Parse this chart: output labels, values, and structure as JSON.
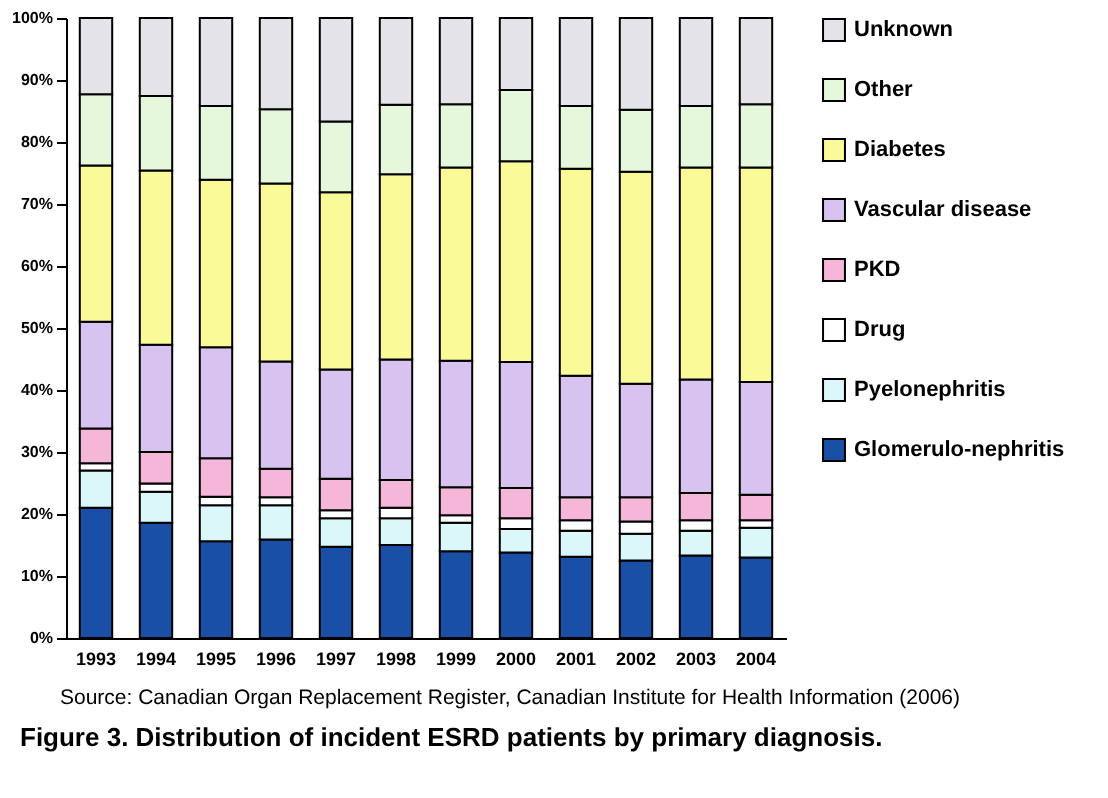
{
  "chart_data": {
    "type": "bar",
    "stacked": true,
    "title": "Figure 3.  Distribution of incident ESRD patients by primary diagnosis.",
    "annotations": [
      "Source: Canadian Organ Replacement Register, Canadian Institute for Health Information (2006)"
    ],
    "categories": [
      "1993",
      "1994",
      "1995",
      "1996",
      "1997",
      "1998",
      "1999",
      "2000",
      "2001",
      "2002",
      "2003",
      "2004"
    ],
    "ylim": [
      0,
      100
    ],
    "yticks": [
      {
        "value": 0,
        "label": "0%"
      },
      {
        "value": 10,
        "label": "10%"
      },
      {
        "value": 20,
        "label": "20%"
      },
      {
        "value": 30,
        "label": "30%"
      },
      {
        "value": 40,
        "label": "40%"
      },
      {
        "value": 50,
        "label": "50%"
      },
      {
        "value": 60,
        "label": "60%"
      },
      {
        "value": 70,
        "label": "70%"
      },
      {
        "value": 80,
        "label": "80%"
      },
      {
        "value": 90,
        "label": "90%"
      },
      {
        "value": 100,
        "label": "100%"
      }
    ],
    "grid": false,
    "legend": "right",
    "series": [
      {
        "name": "Glomerulo-nephritis",
        "color": "#1a4fa6",
        "values": [
          21,
          18.6,
          15.6,
          15.9,
          14.7,
          15,
          14,
          13.8,
          13.1,
          12.5,
          13.3,
          13
        ]
      },
      {
        "name": "Pyelonephritis",
        "color": "#dcf7fa",
        "values": [
          6,
          5,
          5.8,
          5.5,
          4.6,
          4.3,
          4.6,
          3.8,
          4.2,
          4.3,
          4,
          4.8
        ]
      },
      {
        "name": "Drug",
        "color": "#ffffff",
        "values": [
          1.2,
          1.3,
          1.4,
          1.3,
          1.3,
          1.7,
          1.2,
          1.7,
          1.7,
          2,
          1.7,
          1.2
        ]
      },
      {
        "name": "PKD",
        "color": "#f5b6da",
        "values": [
          5.6,
          5.1,
          6.2,
          4.6,
          5.1,
          4.5,
          4.5,
          4.9,
          3.7,
          3.9,
          4.4,
          4.1
        ]
      },
      {
        "name": "Vascular disease",
        "color": "#d8c3f0",
        "values": [
          17.2,
          17.3,
          17.9,
          17.3,
          17.6,
          19.4,
          20.4,
          20.3,
          19.6,
          18.3,
          18.3,
          18.2
        ]
      },
      {
        "name": "Diabetes",
        "color": "#fbfa98",
        "values": [
          25.2,
          28.1,
          27,
          28.7,
          28.6,
          29.9,
          31.2,
          32.4,
          33.4,
          34.2,
          34.2,
          34.6
        ]
      },
      {
        "name": "Other",
        "color": "#e6f8dc",
        "values": [
          11.5,
          12,
          11.9,
          12,
          11.4,
          11.2,
          10.2,
          11.5,
          10.1,
          10,
          9.9,
          10.2
        ]
      },
      {
        "name": "Unknown",
        "color": "#e4e4e8",
        "values": [
          12.3,
          12.6,
          14.2,
          14.7,
          16.7,
          14,
          13.9,
          11.6,
          14.2,
          14.8,
          14.2,
          13.9
        ]
      }
    ]
  }
}
